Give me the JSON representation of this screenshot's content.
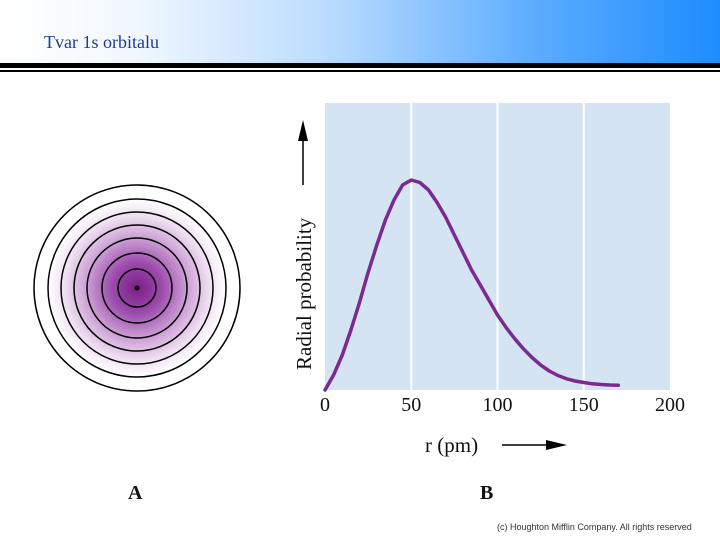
{
  "slide": {
    "title": "Tvar 1s orbitalu",
    "label_a": "A",
    "label_b": "B",
    "copyright": "(c) Houghton Mifflin Company. All rights reserved"
  },
  "colors": {
    "curve": "#7b2a90",
    "plot_bg": "#d5e4f3",
    "orbital_center": "#7a1f88"
  },
  "chart_data": {
    "type": "line",
    "title": "",
    "xlabel": "r (pm)",
    "ylabel": "Radial probability",
    "xlim": [
      0,
      200
    ],
    "ylim": [
      0,
      1
    ],
    "xticks": [
      0,
      50,
      100,
      150,
      200
    ],
    "x_tick_labels": [
      "0",
      "50",
      "100",
      "150",
      "200"
    ],
    "grid_x": [
      50,
      100,
      150
    ],
    "series": [
      {
        "name": "1s radial probability",
        "x": [
          0,
          5,
          10,
          15,
          20,
          25,
          30,
          35,
          40,
          45,
          50,
          55,
          60,
          65,
          70,
          75,
          80,
          85,
          90,
          95,
          100,
          105,
          110,
          115,
          120,
          125,
          130,
          135,
          140,
          145,
          150,
          155,
          160,
          165,
          170
        ],
        "y": [
          0,
          0.06,
          0.14,
          0.24,
          0.35,
          0.47,
          0.58,
          0.68,
          0.76,
          0.82,
          0.84,
          0.83,
          0.8,
          0.75,
          0.69,
          0.62,
          0.55,
          0.48,
          0.42,
          0.36,
          0.3,
          0.25,
          0.205,
          0.165,
          0.13,
          0.1,
          0.076,
          0.058,
          0.045,
          0.036,
          0.03,
          0.025,
          0.022,
          0.02,
          0.019
        ]
      }
    ]
  }
}
